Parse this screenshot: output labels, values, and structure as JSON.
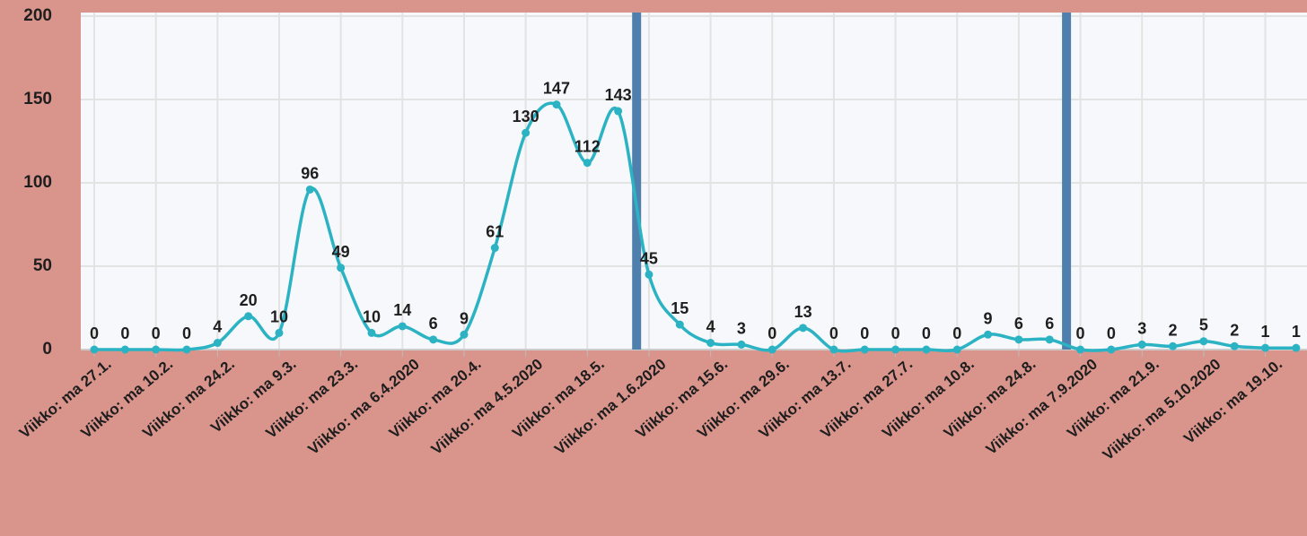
{
  "chart_data": {
    "type": "line",
    "categories": [
      "Viikko: ma 27.1.",
      null,
      "Viikko: ma 10.2.",
      null,
      "Viikko: ma 24.2.",
      null,
      "Viikko: ma 9.3.",
      null,
      "Viikko: ma 23.3.",
      null,
      "Viikko: ma 6.4.2020",
      null,
      "Viikko: ma 20.4.",
      null,
      "Viikko: ma 4.5.2020",
      null,
      "Viikko: ma 18.5.",
      null,
      "Viikko: ma 1.6.2020",
      null,
      "Viikko: ma 15.6.",
      null,
      "Viikko: ma 29.6.",
      null,
      "Viikko: ma 13.7.",
      null,
      "Viikko: ma 27.7.",
      null,
      "Viikko: ma 10.8.",
      null,
      "Viikko: ma 24.8.",
      null,
      "Viikko: ma 7.9.2020",
      null,
      "Viikko: ma 21.9.",
      null,
      "Viikko: ma 5.10.2020",
      null,
      "Viikko: ma 19.10.",
      null
    ],
    "series": [
      {
        "color": "#2bb3c4",
        "values": [
          0,
          0,
          0,
          0,
          4,
          20,
          10,
          96,
          49,
          10,
          14,
          6,
          9,
          61,
          130,
          147,
          112,
          143,
          45,
          15,
          4,
          3,
          0,
          13,
          0,
          0,
          0,
          0,
          0,
          9,
          6,
          6,
          0,
          0,
          3,
          2,
          5,
          2,
          1,
          1
        ]
      }
    ],
    "ylim": [
      0,
      200
    ],
    "yticks": [
      0,
      50,
      100,
      150,
      200
    ],
    "grid": true
  }
}
